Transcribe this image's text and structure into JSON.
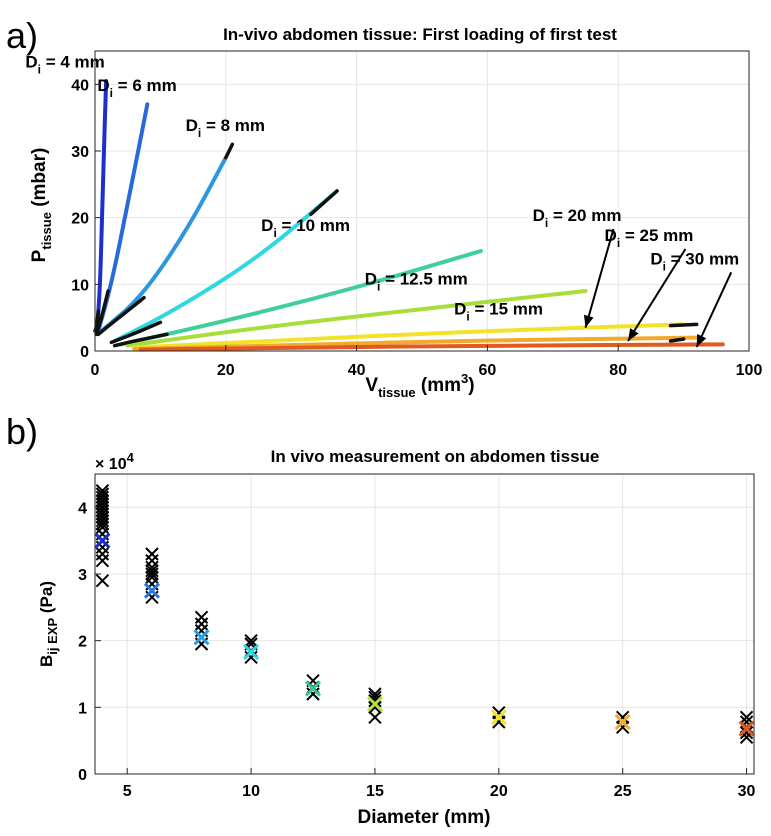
{
  "chart_data": [
    {
      "panel_label": "a)",
      "type": "line",
      "title": "In-vivo abdomen tissue: First loading of first test",
      "xlabel": "V",
      "xlabel_sub": "tissue",
      "xlabel_unit_pre": " (mm",
      "xlabel_unit_sup": "3",
      "xlabel_unit_post": ")",
      "ylabel": "P",
      "ylabel_sub": "tissue",
      "ylabel_unit": " (mbar)",
      "xlim": [
        0,
        100
      ],
      "ylim": [
        0,
        45
      ],
      "xticks": [
        "0",
        "20",
        "40",
        "60",
        "80",
        "100"
      ],
      "yticks": [
        "0",
        "10",
        "20",
        "30",
        "40"
      ],
      "grid": true,
      "series": [
        {
          "color": "#1f2ecf",
          "x": [
            0.3,
            0.8,
            1.2,
            1.7
          ],
          "y": [
            3,
            10,
            25,
            40.5
          ]
        },
        {
          "color": "#2869dc",
          "x": [
            0.5,
            2.5,
            5.0,
            8.0
          ],
          "y": [
            3,
            10,
            22,
            37
          ]
        },
        {
          "color": "#2d97de",
          "x": [
            1.0,
            7.0,
            14.0,
            20.0
          ],
          "y": [
            3,
            8,
            18,
            29
          ]
        },
        {
          "color": "#2fd8e0",
          "x": [
            3.0,
            12.0,
            25.0,
            37.0
          ],
          "y": [
            1.5,
            6,
            14,
            24
          ]
        },
        {
          "color": "#3fcf98",
          "x": [
            4.0,
            20.0,
            40.0,
            59.0
          ],
          "y": [
            1,
            4.5,
            9.5,
            15
          ]
        },
        {
          "color": "#a8dd3a",
          "x": [
            5.0,
            25.0,
            50.0,
            75.0
          ],
          "y": [
            0.8,
            3.5,
            6.3,
            9
          ]
        },
        {
          "color": "#f2e22a",
          "x": [
            6.0,
            30.0,
            60.0,
            90.0
          ],
          "y": [
            0.5,
            1.7,
            3.0,
            4
          ]
        },
        {
          "color": "#f1aa2d",
          "x": [
            6.0,
            30.0,
            60.0,
            92.0
          ],
          "y": [
            0.3,
            0.9,
            1.6,
            2
          ]
        },
        {
          "color": "#e15a1f",
          "x": [
            7.0,
            30.0,
            60.0,
            96.0
          ],
          "y": [
            0.2,
            0.5,
            0.8,
            1
          ]
        }
      ],
      "black_segments": [
        {
          "x": [
            0.0,
            0.3,
            0.5
          ],
          "y": [
            3,
            4,
            6
          ]
        },
        {
          "x": [
            0.2,
            1.0,
            2.0
          ],
          "y": [
            2.5,
            5,
            9
          ]
        },
        {
          "x": [
            0.5,
            3.0,
            6.0,
            7.5
          ],
          "y": [
            2.5,
            4.5,
            6.8,
            8
          ]
        },
        {
          "x": [
            2.5,
            6.0,
            10.0
          ],
          "y": [
            1.3,
            2.6,
            4.3
          ]
        },
        {
          "x": [
            3.0,
            6.0,
            11.0
          ],
          "y": [
            0.8,
            1.5,
            2.5
          ]
        },
        {
          "x": [
            20.0,
            21.0
          ],
          "y": [
            29,
            31
          ]
        },
        {
          "x": [
            33.0,
            37.0
          ],
          "y": [
            20.5,
            24
          ]
        },
        {
          "x": [
            88.0,
            92.0
          ],
          "y": [
            3.8,
            4
          ]
        },
        {
          "x": [
            88.0,
            90.0
          ],
          "y": [
            1.5,
            1.8
          ]
        }
      ],
      "annotations": [
        {
          "text": "D",
          "sub": "i",
          "rest": " = 4 mm",
          "tx": 1.5,
          "ty": 42.5
        },
        {
          "text": "D",
          "sub": "i",
          "rest": " = 6 mm",
          "tx": 12.5,
          "ty": 39.0
        },
        {
          "text": "D",
          "sub": "i",
          "rest": " = 8 mm",
          "tx": 26.0,
          "ty": 33.0
        },
        {
          "text": "D",
          "sub": "i",
          "rest": " = 10 mm",
          "tx": 39.0,
          "ty": 18.0
        },
        {
          "text": "D",
          "sub": "i",
          "rest": " = 12.5 mm",
          "tx": 57.0,
          "ty": 10.0
        },
        {
          "text": "D",
          "sub": "i",
          "rest": " = 15 mm",
          "tx": 68.5,
          "ty": 5.5
        },
        {
          "text": "D",
          "sub": "i",
          "rest": " = 20 mm",
          "tx": 80.5,
          "ty": 19.5,
          "ax": 75.0,
          "ay": 3.5
        },
        {
          "text": "D",
          "sub": "i",
          "rest": " = 25 mm",
          "tx": 91.5,
          "ty": 16.5,
          "ax": 81.5,
          "ay": 1.5
        },
        {
          "text": "D",
          "sub": "i",
          "rest": " = 30 mm",
          "tx": 98.5,
          "ty": 13.0,
          "ax": 92.0,
          "ay": 0.6
        }
      ]
    },
    {
      "panel_label": "b)",
      "type": "scatter",
      "title": "In vivo measurement on abdomen tissue",
      "xlabel": "Diameter (mm)",
      "ylabel": "B",
      "ylabel_sub": "ij EXP",
      "ylabel_unit": " (Pa)",
      "exponent_label": "× 10",
      "exponent_sup": "4",
      "xlim": [
        3.7,
        30.3
      ],
      "ylim": [
        0,
        4.5
      ],
      "xticks": [
        5,
        10,
        15,
        20,
        25,
        30
      ],
      "yticks": [
        0,
        1,
        2,
        3,
        4
      ],
      "grid": true,
      "marker": "x",
      "groups": [
        {
          "x": 4,
          "mean": 3.5,
          "color": "#1a2ecf",
          "points": [
            2.9,
            3.2,
            3.3,
            3.4,
            3.5,
            3.6,
            3.7,
            3.75,
            3.8,
            3.85,
            3.9,
            3.95,
            4.0,
            4.05,
            4.1,
            4.15,
            4.2,
            4.25
          ]
        },
        {
          "x": 6,
          "mean": 2.75,
          "color": "#2878dd",
          "points": [
            2.65,
            2.75,
            2.85,
            2.95,
            3.0,
            3.05,
            3.1,
            3.2,
            3.3
          ]
        },
        {
          "x": 8,
          "mean": 2.05,
          "color": "#2c9ee0",
          "points": [
            1.95,
            2.05,
            2.15,
            2.25,
            2.35
          ]
        },
        {
          "x": 10,
          "mean": 1.83,
          "color": "#2fd8e0",
          "points": [
            1.75,
            1.85,
            1.95,
            2.0
          ]
        },
        {
          "x": 12.5,
          "mean": 1.28,
          "color": "#39c995",
          "points": [
            1.2,
            1.3,
            1.4
          ]
        },
        {
          "x": 15,
          "mean": 1.05,
          "color": "#b5df3b",
          "points": [
            0.85,
            1.0,
            1.1,
            1.15,
            1.2
          ]
        },
        {
          "x": 20,
          "mean": 0.85,
          "color": "#f2e22a",
          "points": [
            0.78,
            0.85,
            0.92
          ]
        },
        {
          "x": 25,
          "mean": 0.78,
          "color": "#f1ab2d",
          "points": [
            0.7,
            0.78,
            0.85
          ]
        },
        {
          "x": 30,
          "mean": 0.68,
          "color": "#e15a1f",
          "points": [
            0.55,
            0.62,
            0.7,
            0.78,
            0.85
          ]
        }
      ]
    }
  ]
}
